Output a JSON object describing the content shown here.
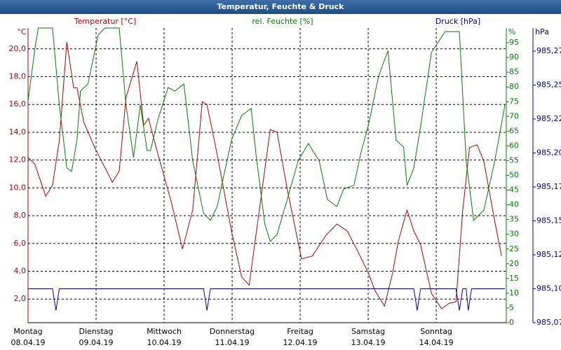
{
  "chart_data": {
    "type": "line",
    "title": "Temperatur, Feuchte & Druck",
    "y_label": "Temperatur [°C]",
    "y_unit": "°C",
    "y2_label": "rel. Feuchte [%]",
    "y2_unit": "%",
    "y3_label": "Druck [hPa]",
    "y3_unit": "hPa",
    "grid": true,
    "xlim": [
      0,
      7.03
    ],
    "xticks": [
      {
        "value": 0,
        "label": "Montag",
        "date": "08.04.19"
      },
      {
        "value": 1,
        "label": "Dienstag",
        "date": "09.04.19"
      },
      {
        "value": 2,
        "label": "Mittwoch",
        "date": "10.04.19"
      },
      {
        "value": 3,
        "label": "Donnerstag",
        "date": "11.04.19"
      },
      {
        "value": 4,
        "label": "Freitag",
        "date": "12.04.19"
      },
      {
        "value": 5,
        "label": "Samstag",
        "date": "13.04.19"
      },
      {
        "value": 6,
        "label": "Sonntag",
        "date": "14.04.19"
      }
    ],
    "ylim": [
      0.3,
      21.5
    ],
    "yticks": [
      {
        "value": 2,
        "label": "2,0"
      },
      {
        "value": 4,
        "label": "4,0"
      },
      {
        "value": 6,
        "label": "6,0"
      },
      {
        "value": 8,
        "label": "8,0"
      },
      {
        "value": 10,
        "label": "10,0"
      },
      {
        "value": 12,
        "label": "12,0"
      },
      {
        "value": 14,
        "label": "14,0"
      },
      {
        "value": 16,
        "label": "16,0"
      },
      {
        "value": 18,
        "label": "18,0"
      },
      {
        "value": 20,
        "label": "20,0"
      }
    ],
    "y2lim": [
      0,
      100
    ],
    "y2ticks": [
      0,
      5,
      10,
      15,
      20,
      25,
      30,
      35,
      40,
      45,
      50,
      55,
      60,
      65,
      70,
      75,
      80,
      85,
      90,
      95
    ],
    "y3lim": [
      985.075,
      985.292
    ],
    "y3ticks": [
      {
        "value": 985.075,
        "label": "985,07"
      },
      {
        "value": 985.1,
        "label": "985,10"
      },
      {
        "value": 985.125,
        "label": "985,12"
      },
      {
        "value": 985.15,
        "label": "985,15"
      },
      {
        "value": 985.175,
        "label": "985,17"
      },
      {
        "value": 985.2,
        "label": "985,20"
      },
      {
        "value": 985.225,
        "label": "985,22"
      },
      {
        "value": 985.25,
        "label": "985,25"
      },
      {
        "value": 985.275,
        "label": "985,27"
      }
    ],
    "series": [
      {
        "name": "Temperatur",
        "color": "#b00000",
        "axis": "y",
        "x": [
          0,
          0.1,
          0.26,
          0.36,
          0.46,
          0.57,
          0.67,
          0.72,
          0.82,
          0.98,
          1.24,
          1.34,
          1.44,
          1.6,
          1.7,
          1.77,
          1.91,
          2.11,
          2.27,
          2.42,
          2.56,
          2.63,
          2.78,
          2.99,
          3.14,
          3.25,
          3.4,
          3.56,
          3.66,
          3.81,
          4.02,
          4.18,
          4.38,
          4.54,
          4.69,
          4.85,
          5.0,
          5.1,
          5.24,
          5.36,
          5.44,
          5.57,
          5.67,
          5.77,
          5.93,
          6.08,
          6.19,
          6.29,
          6.39,
          6.49,
          6.6,
          6.7,
          6.86,
          6.96
        ],
        "values": [
          12.2,
          11.7,
          9.4,
          10.2,
          13.4,
          20.5,
          17.2,
          17.2,
          14.7,
          12.9,
          10.4,
          11.2,
          16.5,
          19.1,
          14.5,
          15.0,
          12.4,
          8.9,
          5.6,
          8.4,
          16.2,
          16.0,
          12.4,
          6.9,
          3.6,
          3.0,
          8.4,
          14.2,
          14.0,
          9.9,
          4.9,
          5.1,
          6.6,
          7.4,
          6.9,
          5.4,
          3.9,
          2.6,
          1.5,
          3.9,
          6.1,
          8.4,
          6.9,
          5.9,
          2.4,
          1.3,
          1.7,
          1.8,
          8.4,
          12.9,
          13.1,
          11.9,
          7.6,
          5.1
        ]
      },
      {
        "name": "rel. Feuchte",
        "color": "#008000",
        "axis": "y2",
        "x": [
          0,
          0.1,
          0.15,
          0.36,
          0.46,
          0.57,
          0.64,
          0.72,
          0.77,
          0.88,
          1.03,
          1.13,
          1.34,
          1.44,
          1.55,
          1.65,
          1.75,
          1.8,
          1.91,
          2.06,
          2.16,
          2.29,
          2.42,
          2.58,
          2.68,
          2.78,
          2.89,
          2.99,
          3.14,
          3.28,
          3.35,
          3.48,
          3.56,
          3.66,
          3.81,
          3.97,
          4.12,
          4.28,
          4.4,
          4.54,
          4.64,
          4.79,
          4.9,
          5.0,
          5.15,
          5.29,
          5.41,
          5.52,
          5.57,
          5.67,
          5.77,
          5.93,
          6.13,
          6.34,
          6.44,
          6.55,
          6.7,
          6.86,
          7.01
        ],
        "values": [
          75.1,
          92.9,
          100,
          100,
          73.9,
          52.5,
          51.3,
          62.0,
          78.6,
          81.0,
          97.6,
          100,
          100,
          73.9,
          56.1,
          73.9,
          58.4,
          58.4,
          69.1,
          79.8,
          78.6,
          81.0,
          54.9,
          37.1,
          34.7,
          39.4,
          51.3,
          62.0,
          70.3,
          72.7,
          57.2,
          33.5,
          27.6,
          29.9,
          41.8,
          54.9,
          60.8,
          54.9,
          41.8,
          39.4,
          45.4,
          46.6,
          58.4,
          66.7,
          83.4,
          92.4,
          62.0,
          59.6,
          46.6,
          52.5,
          66.7,
          91.7,
          98.8,
          98.8,
          54.9,
          34.7,
          38.2,
          54.9,
          73.9
        ]
      },
      {
        "name": "Druck",
        "color": "#0000a0",
        "axis": "y3",
        "x": [
          0,
          0.36,
          0.41,
          0.46,
          2.58,
          2.63,
          2.68,
          5.67,
          5.72,
          5.77,
          6.29,
          6.34,
          6.39,
          6.44,
          6.47,
          6.52,
          7.01
        ],
        "values": [
          985.1,
          985.1,
          985.084,
          985.1,
          985.1,
          985.084,
          985.1,
          985.1,
          985.084,
          985.1,
          985.1,
          985.084,
          985.1,
          985.1,
          985.084,
          985.1,
          985.1
        ]
      }
    ]
  }
}
